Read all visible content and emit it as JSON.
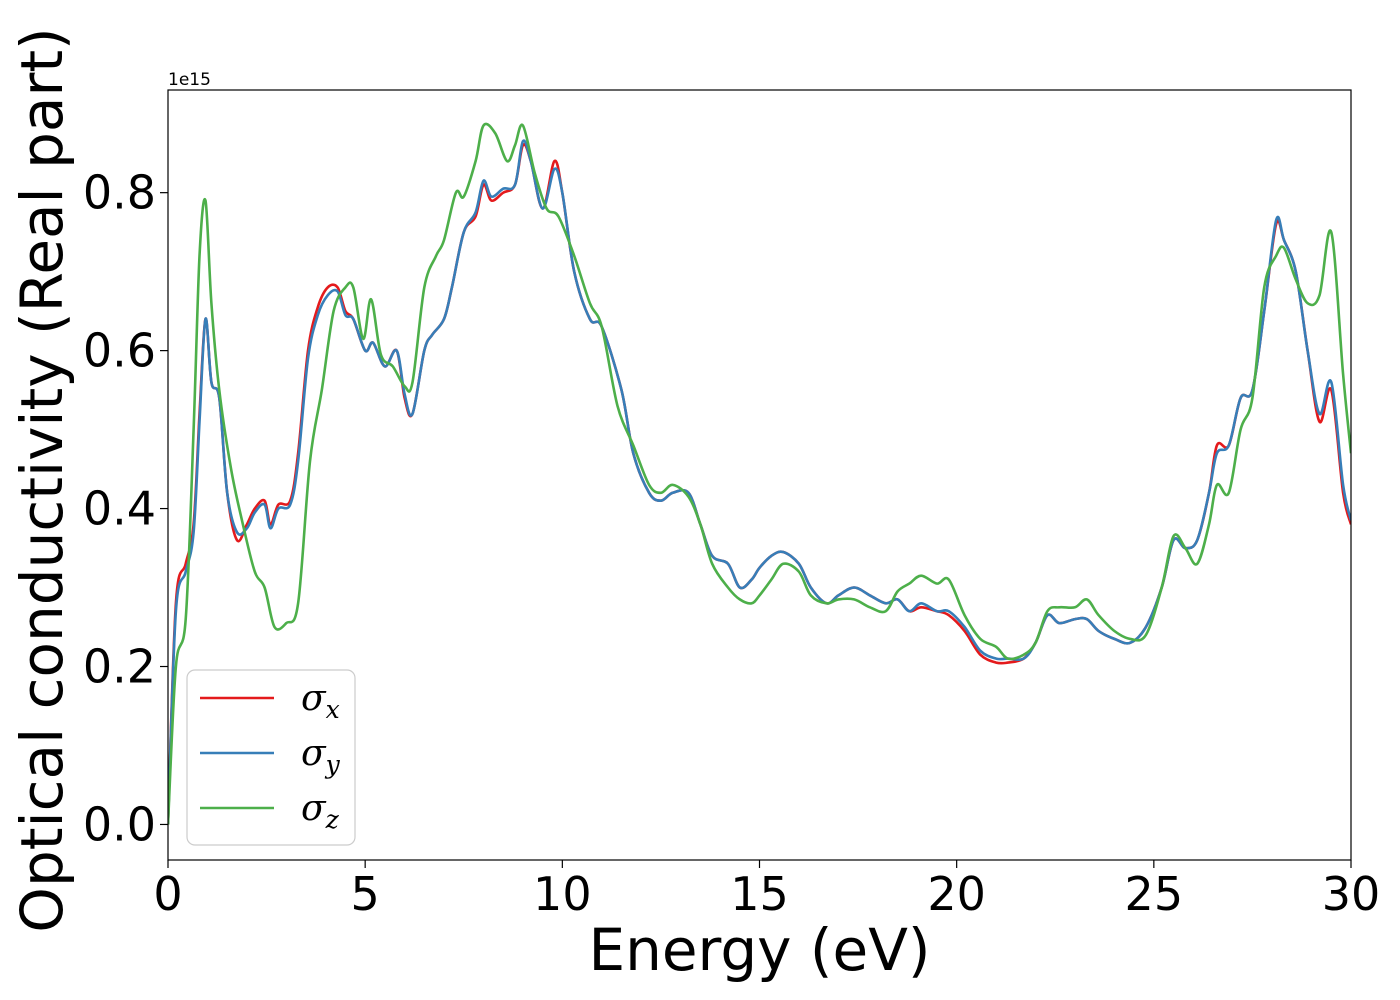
{
  "chart_data": {
    "type": "line",
    "xlabel": "Energy (eV)",
    "ylabel": "Optical conductivity (Real part)",
    "y_offset_text": "1e15",
    "xlim": [
      0,
      30
    ],
    "ylim": [
      -0.045,
      0.93
    ],
    "x_ticks": [
      0,
      5,
      10,
      15,
      20,
      25,
      30
    ],
    "x_tick_labels": [
      "0",
      "5",
      "10",
      "15",
      "20",
      "25",
      "30"
    ],
    "y_ticks": [
      0.0,
      0.2,
      0.4,
      0.6,
      0.8
    ],
    "y_tick_labels": [
      "0.0",
      "0.2",
      "0.4",
      "0.6",
      "0.8"
    ],
    "grid": false,
    "legend_position": "lower-left",
    "series": [
      {
        "name": "σx",
        "symbol": "σ",
        "subscript": "x",
        "color": "#e41a1c",
        "x": [
          0,
          0.2,
          0.45,
          0.65,
          0.8,
          0.95,
          1.1,
          1.3,
          1.5,
          1.75,
          2.0,
          2.2,
          2.45,
          2.6,
          2.8,
          3.1,
          3.3,
          3.55,
          3.8,
          4.05,
          4.3,
          4.5,
          4.7,
          5.0,
          5.2,
          5.5,
          5.8,
          6.0,
          6.2,
          6.5,
          6.7,
          7.0,
          7.2,
          7.5,
          7.8,
          8.0,
          8.2,
          8.5,
          8.8,
          9.0,
          9.2,
          9.5,
          9.8,
          10.0,
          10.3,
          10.7,
          11.0,
          11.5,
          11.8,
          12.2,
          12.5,
          12.8,
          13.2,
          13.5,
          13.8,
          14.2,
          14.5,
          14.8,
          15.0,
          15.3,
          15.6,
          16.0,
          16.3,
          16.7,
          17.0,
          17.4,
          17.8,
          18.2,
          18.5,
          18.8,
          19.1,
          19.5,
          19.8,
          20.2,
          20.6,
          21.0,
          21.3,
          21.7,
          22.0,
          22.3,
          22.6,
          23.0,
          23.3,
          23.6,
          24.0,
          24.4,
          24.8,
          25.2,
          25.5,
          25.8,
          26.1,
          26.4,
          26.6,
          26.9,
          27.2,
          27.5,
          27.8,
          28.1,
          28.3,
          28.6,
          28.9,
          29.2,
          29.5,
          29.8,
          30.0
        ],
        "y": [
          0.0,
          0.28,
          0.33,
          0.38,
          0.52,
          0.64,
          0.56,
          0.54,
          0.42,
          0.36,
          0.38,
          0.4,
          0.41,
          0.38,
          0.405,
          0.41,
          0.47,
          0.6,
          0.655,
          0.68,
          0.68,
          0.65,
          0.64,
          0.6,
          0.61,
          0.58,
          0.6,
          0.54,
          0.52,
          0.6,
          0.62,
          0.64,
          0.68,
          0.75,
          0.77,
          0.81,
          0.79,
          0.8,
          0.81,
          0.86,
          0.84,
          0.78,
          0.84,
          0.8,
          0.7,
          0.64,
          0.63,
          0.55,
          0.47,
          0.42,
          0.41,
          0.42,
          0.42,
          0.38,
          0.34,
          0.33,
          0.3,
          0.31,
          0.325,
          0.34,
          0.345,
          0.33,
          0.3,
          0.28,
          0.29,
          0.3,
          0.29,
          0.28,
          0.285,
          0.27,
          0.275,
          0.27,
          0.265,
          0.245,
          0.215,
          0.205,
          0.205,
          0.21,
          0.23,
          0.265,
          0.255,
          0.26,
          0.26,
          0.245,
          0.235,
          0.23,
          0.25,
          0.3,
          0.36,
          0.35,
          0.36,
          0.42,
          0.48,
          0.48,
          0.54,
          0.55,
          0.65,
          0.76,
          0.74,
          0.7,
          0.6,
          0.51,
          0.55,
          0.42,
          0.38
        ]
      },
      {
        "name": "σy",
        "symbol": "σ",
        "subscript": "y",
        "color": "#377eb8",
        "x": [
          0,
          0.2,
          0.45,
          0.65,
          0.8,
          0.95,
          1.1,
          1.3,
          1.5,
          1.75,
          2.0,
          2.2,
          2.45,
          2.6,
          2.8,
          3.1,
          3.3,
          3.55,
          3.8,
          4.05,
          4.3,
          4.5,
          4.7,
          5.0,
          5.2,
          5.5,
          5.8,
          6.0,
          6.2,
          6.5,
          6.7,
          7.0,
          7.2,
          7.5,
          7.8,
          8.0,
          8.2,
          8.5,
          8.8,
          9.0,
          9.2,
          9.5,
          9.8,
          10.0,
          10.3,
          10.7,
          11.0,
          11.5,
          11.8,
          12.2,
          12.5,
          12.8,
          13.2,
          13.5,
          13.8,
          14.2,
          14.5,
          14.8,
          15.0,
          15.3,
          15.6,
          16.0,
          16.3,
          16.7,
          17.0,
          17.4,
          17.8,
          18.2,
          18.5,
          18.8,
          19.1,
          19.5,
          19.8,
          20.2,
          20.6,
          21.0,
          21.3,
          21.7,
          22.0,
          22.3,
          22.6,
          23.0,
          23.3,
          23.6,
          24.0,
          24.4,
          24.8,
          25.2,
          25.5,
          25.8,
          26.1,
          26.4,
          26.6,
          26.9,
          27.2,
          27.5,
          27.8,
          28.1,
          28.3,
          28.6,
          28.9,
          29.2,
          29.5,
          29.8,
          30.0
        ],
        "y": [
          0.0,
          0.27,
          0.32,
          0.37,
          0.51,
          0.64,
          0.56,
          0.54,
          0.42,
          0.37,
          0.375,
          0.395,
          0.405,
          0.375,
          0.4,
          0.405,
          0.46,
          0.59,
          0.645,
          0.67,
          0.675,
          0.645,
          0.64,
          0.6,
          0.61,
          0.58,
          0.6,
          0.545,
          0.52,
          0.6,
          0.62,
          0.64,
          0.68,
          0.75,
          0.775,
          0.815,
          0.795,
          0.805,
          0.81,
          0.865,
          0.84,
          0.78,
          0.83,
          0.8,
          0.7,
          0.64,
          0.63,
          0.55,
          0.47,
          0.42,
          0.41,
          0.42,
          0.42,
          0.38,
          0.34,
          0.33,
          0.3,
          0.31,
          0.325,
          0.34,
          0.345,
          0.33,
          0.3,
          0.28,
          0.29,
          0.3,
          0.29,
          0.28,
          0.285,
          0.27,
          0.28,
          0.27,
          0.27,
          0.25,
          0.22,
          0.21,
          0.21,
          0.21,
          0.23,
          0.265,
          0.255,
          0.26,
          0.26,
          0.245,
          0.235,
          0.23,
          0.25,
          0.3,
          0.36,
          0.35,
          0.36,
          0.42,
          0.47,
          0.48,
          0.54,
          0.55,
          0.65,
          0.765,
          0.74,
          0.7,
          0.6,
          0.52,
          0.56,
          0.43,
          0.385
        ]
      },
      {
        "name": "σz",
        "symbol": "σ",
        "subscript": "z",
        "color": "#4daf4a",
        "x": [
          0,
          0.2,
          0.45,
          0.65,
          0.8,
          0.95,
          1.1,
          1.3,
          1.6,
          1.9,
          2.2,
          2.45,
          2.7,
          3.0,
          3.3,
          3.6,
          3.9,
          4.2,
          4.5,
          4.7,
          4.95,
          5.15,
          5.4,
          5.7,
          6.0,
          6.2,
          6.5,
          6.8,
          7.0,
          7.3,
          7.5,
          7.8,
          8.0,
          8.3,
          8.6,
          8.8,
          9.0,
          9.3,
          9.6,
          9.9,
          10.3,
          10.7,
          11.0,
          11.4,
          11.8,
          12.2,
          12.5,
          12.8,
          13.2,
          13.5,
          13.8,
          14.2,
          14.5,
          14.8,
          15.0,
          15.3,
          15.6,
          16.0,
          16.3,
          16.7,
          17.0,
          17.4,
          17.8,
          18.2,
          18.5,
          18.8,
          19.1,
          19.5,
          19.8,
          20.2,
          20.6,
          21.0,
          21.3,
          21.7,
          22.0,
          22.3,
          22.6,
          23.0,
          23.3,
          23.6,
          24.0,
          24.4,
          24.8,
          25.2,
          25.5,
          25.8,
          26.1,
          26.4,
          26.6,
          26.9,
          27.2,
          27.5,
          27.8,
          28.1,
          28.3,
          28.6,
          28.9,
          29.2,
          29.5,
          29.8,
          30.0
        ],
        "y": [
          0.0,
          0.2,
          0.26,
          0.5,
          0.72,
          0.79,
          0.66,
          0.55,
          0.45,
          0.38,
          0.32,
          0.3,
          0.25,
          0.255,
          0.28,
          0.46,
          0.55,
          0.65,
          0.68,
          0.68,
          0.615,
          0.665,
          0.595,
          0.58,
          0.555,
          0.56,
          0.68,
          0.72,
          0.74,
          0.8,
          0.795,
          0.84,
          0.885,
          0.875,
          0.84,
          0.86,
          0.885,
          0.825,
          0.78,
          0.77,
          0.72,
          0.66,
          0.63,
          0.53,
          0.48,
          0.43,
          0.42,
          0.43,
          0.415,
          0.38,
          0.33,
          0.3,
          0.285,
          0.28,
          0.29,
          0.31,
          0.33,
          0.32,
          0.29,
          0.28,
          0.285,
          0.285,
          0.275,
          0.27,
          0.295,
          0.305,
          0.315,
          0.305,
          0.31,
          0.265,
          0.235,
          0.225,
          0.21,
          0.215,
          0.23,
          0.27,
          0.275,
          0.275,
          0.285,
          0.265,
          0.245,
          0.235,
          0.24,
          0.3,
          0.365,
          0.35,
          0.33,
          0.38,
          0.43,
          0.42,
          0.5,
          0.54,
          0.68,
          0.72,
          0.73,
          0.69,
          0.66,
          0.67,
          0.75,
          0.57,
          0.47
        ]
      }
    ]
  }
}
